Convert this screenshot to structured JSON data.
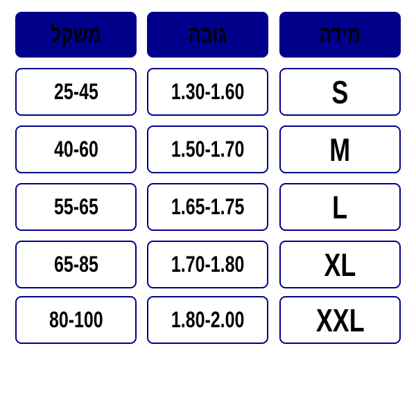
{
  "header": {
    "weight": "משקל",
    "height": "גובה",
    "size": "מידה"
  },
  "rows": [
    {
      "weight": "25-45",
      "height": "1.30-1.60",
      "size": "S"
    },
    {
      "weight": "40-60",
      "height": "1.50-1.70",
      "size": "M"
    },
    {
      "weight": "55-65",
      "height": "1.65-1.75",
      "size": "L"
    },
    {
      "weight": "65-85",
      "height": "1.70-1.80",
      "size": "XL"
    },
    {
      "weight": "80-100",
      "height": "1.80-2.00",
      "size": "XXL"
    }
  ],
  "colors": {
    "accent": "#00008B",
    "text": "#000000"
  }
}
